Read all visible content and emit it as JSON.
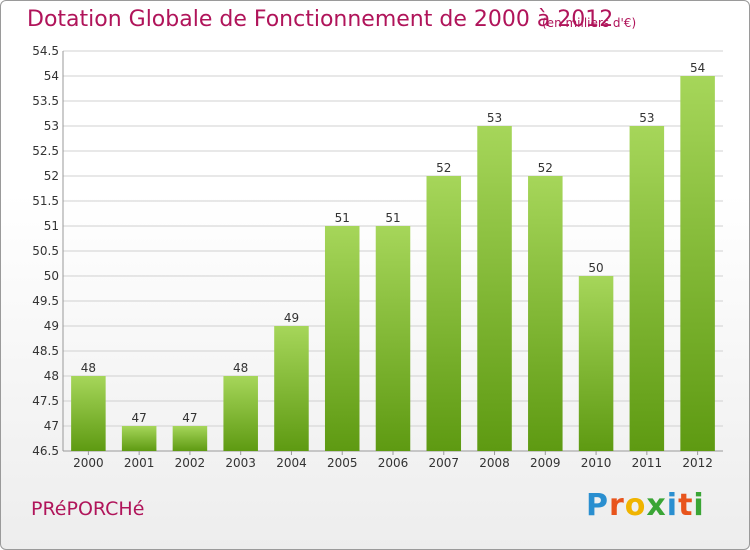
{
  "header": {
    "title": "Dotation Globale de Fonctionnement de 2000 à 2012",
    "subtitle": "(en milliers d'€)"
  },
  "footer": {
    "commune": "PRéPORCHé",
    "logo": "Proxiti",
    "logo_colors": [
      "#2a8fd0",
      "#e8541c",
      "#f0b400",
      "#3aa535",
      "#2a8fd0",
      "#e8541c",
      "#3aa535"
    ]
  },
  "colors": {
    "title": "#b0145a",
    "bar_light": "#a6d65a",
    "bar_dark": "#5e9a12",
    "grid": "#d0d0d0",
    "axis_text": "#333333"
  },
  "chart_data": {
    "type": "bar",
    "title": "Dotation Globale de Fonctionnement de 2000 à 2012",
    "xlabel": "",
    "ylabel": "",
    "categories": [
      "2000",
      "2001",
      "2002",
      "2003",
      "2004",
      "2005",
      "2006",
      "2007",
      "2008",
      "2009",
      "2010",
      "2011",
      "2012"
    ],
    "values": [
      48,
      47,
      47,
      48,
      49,
      51,
      51,
      52,
      53,
      52,
      50,
      53,
      54
    ],
    "labels": [
      "48",
      "47",
      "47",
      "48",
      "49",
      "51",
      "51",
      "52",
      "53",
      "52",
      "50",
      "53",
      "54"
    ],
    "ylim": [
      46.5,
      54.5
    ],
    "yticks": [
      "46.5",
      "47",
      "47.5",
      "48",
      "48.5",
      "49",
      "49.5",
      "50",
      "50.5",
      "51",
      "51.5",
      "52",
      "52.5",
      "53",
      "53.5",
      "54",
      "54.5"
    ],
    "grid": true
  }
}
